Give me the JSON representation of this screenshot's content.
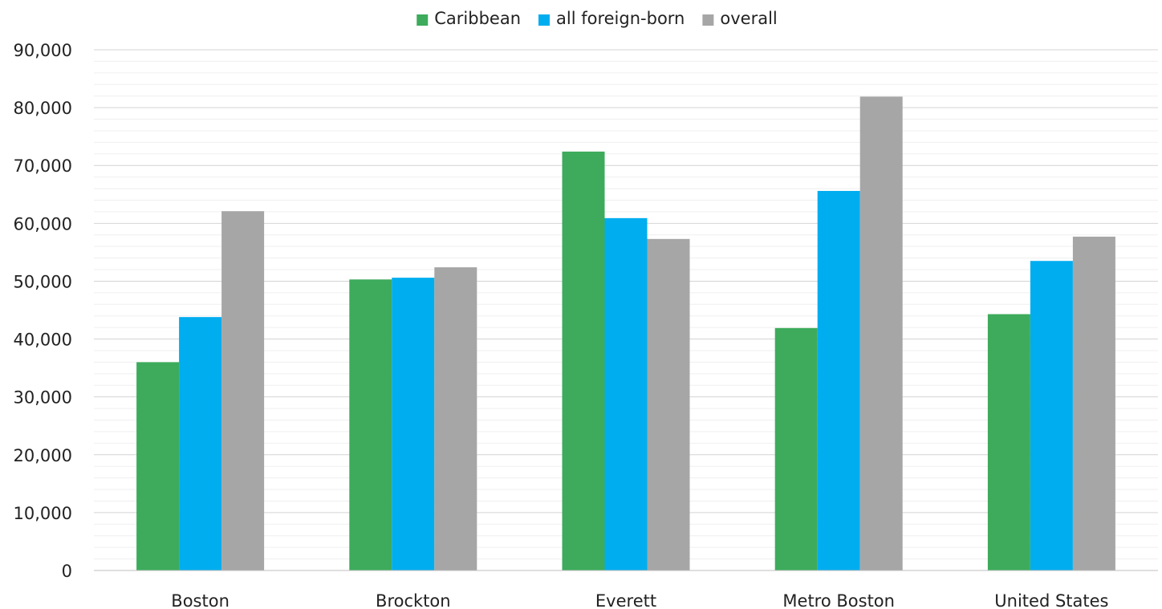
{
  "chart_data": {
    "type": "bar",
    "categories": [
      "Boston",
      "Brockton",
      "Everett",
      "Metro Boston",
      "United States"
    ],
    "series": [
      {
        "name": "Caribbean",
        "color": "#3dab5b",
        "values": [
          36000,
          50300,
          72400,
          41900,
          44300
        ]
      },
      {
        "name": "all foreign-born",
        "color": "#00adef",
        "values": [
          43800,
          50600,
          60900,
          65600,
          53500
        ]
      },
      {
        "name": "overall",
        "color": "#a6a6a6",
        "values": [
          62100,
          52400,
          57300,
          81900,
          57700
        ]
      }
    ],
    "yticks": [
      "0",
      "10,000",
      "20,000",
      "30,000",
      "40,000",
      "50,000",
      "60,000",
      "70,000",
      "80,000",
      "90,000"
    ],
    "ylim": [
      0,
      90000
    ],
    "major_step": 10000,
    "minor_step": 2000,
    "grid": true,
    "legend_position": "top-center"
  }
}
